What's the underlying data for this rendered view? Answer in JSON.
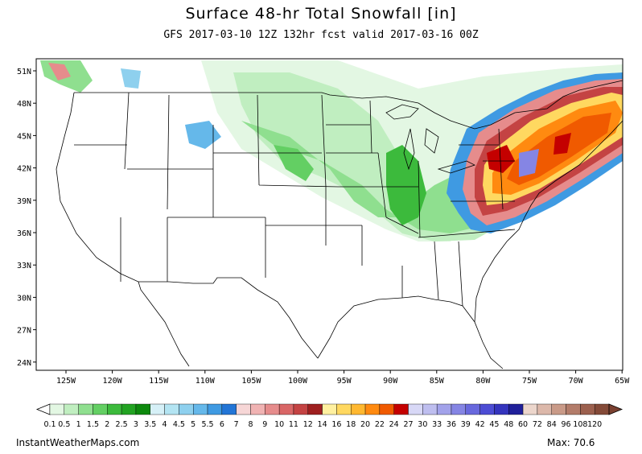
{
  "title": "Surface 48-hr Total Snowfall [in]",
  "subtitle": "GFS 2017-03-10 12Z 132hr fcst valid 2017-03-16 00Z",
  "lat_labels": [
    "51N",
    "48N",
    "45N",
    "42N",
    "39N",
    "36N",
    "33N",
    "30N",
    "27N",
    "24N"
  ],
  "lon_labels": [
    "125W",
    "120W",
    "115W",
    "110W",
    "105W",
    "100W",
    "95W",
    "90W",
    "85W",
    "80W",
    "75W",
    "70W",
    "65W"
  ],
  "legend": {
    "labels": [
      "0.1",
      "0.5",
      "1",
      "1.5",
      "2",
      "2.5",
      "3",
      "3.5",
      "4",
      "4.5",
      "5",
      "5.5",
      "6",
      "7",
      "8",
      "9",
      "10",
      "11",
      "12",
      "14",
      "16",
      "18",
      "20",
      "22",
      "24",
      "27",
      "30",
      "33",
      "36",
      "39",
      "42",
      "45",
      "48",
      "60",
      "72",
      "84",
      "96",
      "108",
      "120"
    ],
    "colors": [
      "#e3f7e3",
      "#c0eec0",
      "#8fdf8f",
      "#63cf63",
      "#3cba3c",
      "#22a322",
      "#0d890d",
      "#d6f0f7",
      "#b3e4f2",
      "#8ed0ee",
      "#65b8ea",
      "#3f9ae2",
      "#2275d6",
      "#f6d6d6",
      "#f0b3b3",
      "#e68c8c",
      "#d96666",
      "#c44343",
      "#9e1f1f",
      "#fff0a0",
      "#ffd860",
      "#ffb830",
      "#ff8a10",
      "#f05a00",
      "#c40000",
      "#d8d8f6",
      "#bebeef",
      "#a2a2ea",
      "#8585e4",
      "#6868dd",
      "#4c4cd4",
      "#3434bd",
      "#20209a",
      "#ecd6cc",
      "#dcb8aa",
      "#c99a88",
      "#b37c6a",
      "#9c604e",
      "#844a38"
    ]
  },
  "footer": {
    "site": "InstantWeatherMaps.com",
    "max_label": "Max:",
    "max_value": "70.6"
  }
}
